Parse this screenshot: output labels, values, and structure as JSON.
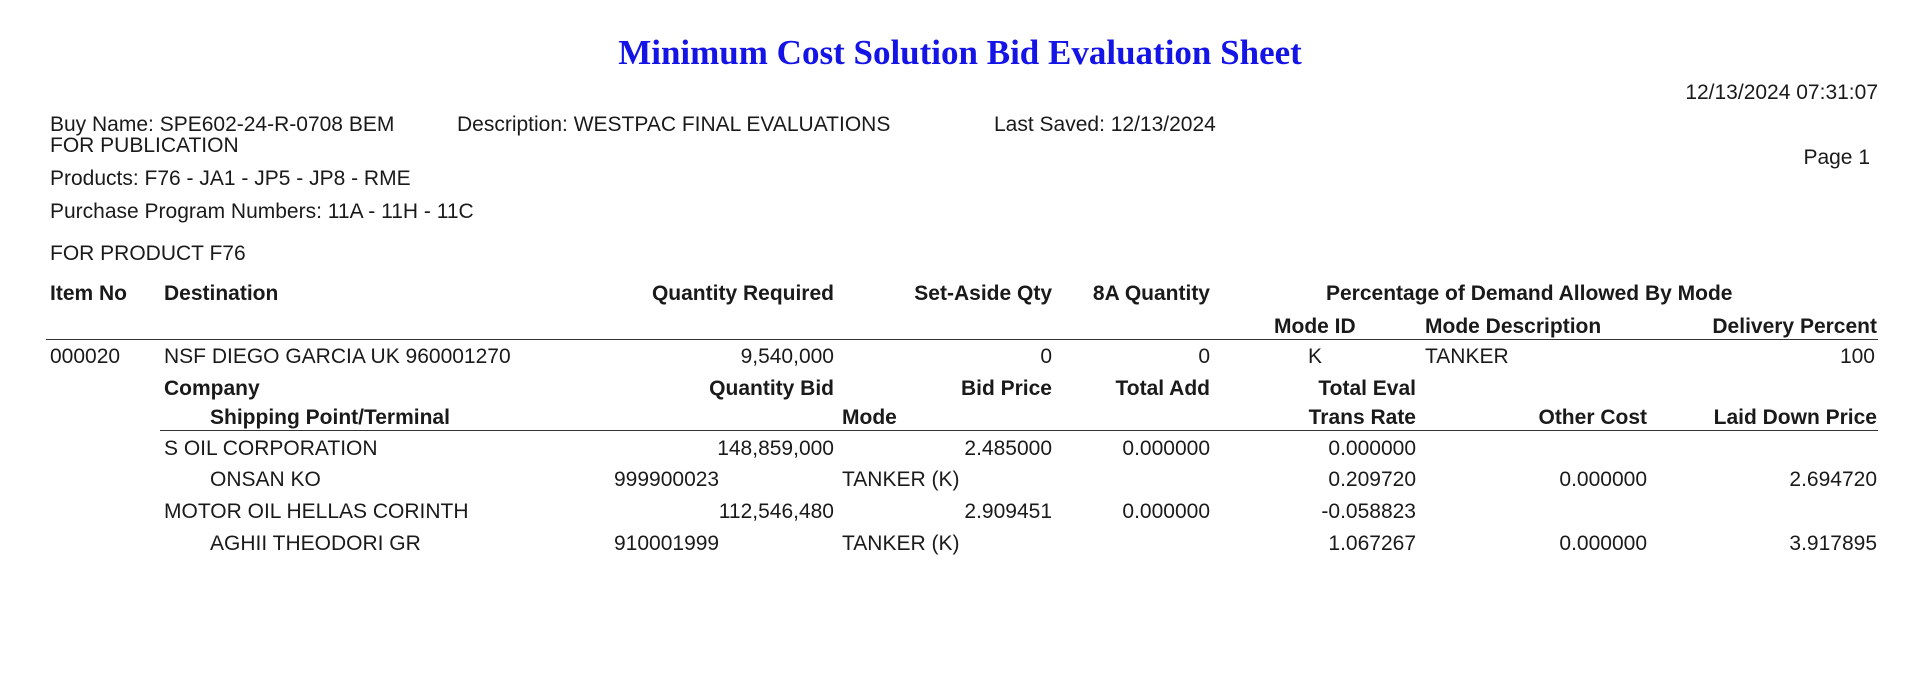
{
  "title": "Minimum Cost Solution Bid Evaluation Sheet",
  "title_color": "#1414e6",
  "timestamp": "12/13/2024 07:31:07",
  "page_label": "Page 1",
  "buy_name": "Buy Name: SPE602-24-R-0708 BEM",
  "description": "Description: WESTPAC FINAL EVALUATIONS",
  "last_saved": "Last Saved: 12/13/2024",
  "publication": "FOR PUBLICATION",
  "products": "Products: F76 - JA1 - JP5 - JP8 - RME",
  "purchase_programs": "Purchase Program Numbers: 11A - 11H - 11C",
  "product_section": "FOR PRODUCT F76",
  "headers": {
    "item_no": "Item No",
    "destination": "Destination",
    "quantity_required": "Quantity Required",
    "set_aside_qty": "Set-Aside Qty",
    "qty_8a": "8A Quantity",
    "pct_demand": "Percentage of Demand Allowed By Mode",
    "mode_id": "Mode ID",
    "mode_description": "Mode Description",
    "delivery_percent": "Delivery Percent",
    "company": "Company",
    "quantity_bid": "Quantity Bid",
    "bid_price": "Bid Price",
    "total_add": "Total Add",
    "total_eval": "Total Eval",
    "shipping_point": "Shipping Point/Terminal",
    "mode": "Mode",
    "trans_rate": "Trans Rate",
    "other_cost": "Other Cost",
    "laid_down_price": "Laid Down Price"
  },
  "item": {
    "item_no": "000020",
    "destination": "NSF DIEGO GARCIA UK 960001270",
    "quantity_required": "9,540,000",
    "set_aside_qty": "0",
    "qty_8a": "0",
    "mode_id": "K",
    "mode_description": "TANKER",
    "delivery_percent": "100"
  },
  "bids": [
    {
      "company": "S OIL CORPORATION",
      "quantity_bid": "148,859,000",
      "bid_price": "2.485000",
      "total_add": "0.000000",
      "total_eval": "0.000000",
      "terminal": "ONSAN KO",
      "terminal_code": "999900023",
      "mode": "TANKER (K)",
      "trans_rate": "0.209720",
      "other_cost": "0.000000",
      "laid_down_price": "2.694720"
    },
    {
      "company": "MOTOR OIL HELLAS CORINTH",
      "quantity_bid": "112,546,480",
      "bid_price": "2.909451",
      "total_add": "0.000000",
      "total_eval": "-0.058823",
      "terminal": "AGHII THEODORI GR",
      "terminal_code": "910001999",
      "mode": "TANKER (K)",
      "trans_rate": "1.067267",
      "other_cost": "0.000000",
      "laid_down_price": "3.917895"
    }
  ]
}
